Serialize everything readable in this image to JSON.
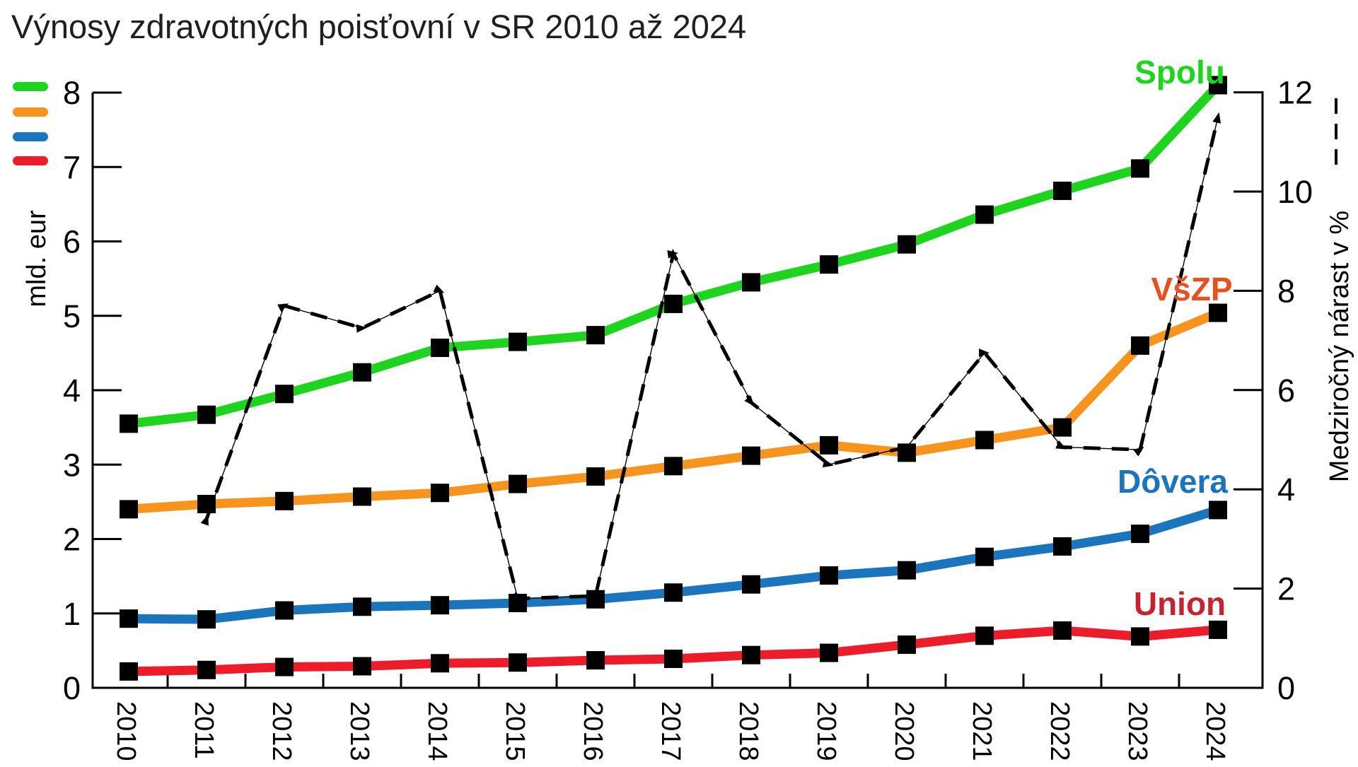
{
  "title": "Výnosy zdravotných poisťovní v SR 2010 až 2024",
  "legend_swatches": [
    {
      "name": "Spolu",
      "color": "#1fd41f"
    },
    {
      "name": "VšZP",
      "color": "#f7941e"
    },
    {
      "name": "Dôvera",
      "color": "#1b75bc"
    },
    {
      "name": "Union",
      "color": "#ed1c2b"
    }
  ],
  "chart_data": {
    "type": "line",
    "title": "Výnosy zdravotných poisťovní v SR 2010 až 2024",
    "x": [
      2010,
      2011,
      2012,
      2013,
      2014,
      2015,
      2016,
      2017,
      2018,
      2019,
      2020,
      2021,
      2022,
      2023,
      2024
    ],
    "series": [
      {
        "name": "Spolu",
        "axis": "left",
        "color": "#1fd41f",
        "label_color": "#1fd41f",
        "values": [
          3.55,
          3.67,
          3.95,
          4.24,
          4.57,
          4.65,
          4.74,
          5.16,
          5.45,
          5.69,
          5.96,
          6.36,
          6.68,
          6.98,
          8.1
        ]
      },
      {
        "name": "VšZP",
        "axis": "left",
        "color": "#f7941e",
        "label_color": "#e8501f",
        "values": [
          2.4,
          2.47,
          2.51,
          2.57,
          2.62,
          2.74,
          2.84,
          2.98,
          3.12,
          3.26,
          3.16,
          3.33,
          3.5,
          4.6,
          5.04
        ]
      },
      {
        "name": "Dôvera",
        "axis": "left",
        "color": "#1b75bc",
        "label_color": "#1b75bc",
        "values": [
          0.93,
          0.92,
          1.04,
          1.09,
          1.11,
          1.14,
          1.19,
          1.28,
          1.39,
          1.51,
          1.58,
          1.76,
          1.9,
          2.07,
          2.39
        ]
      },
      {
        "name": "Union",
        "axis": "left",
        "color": "#ed1c2b",
        "label_color": "#c4232f",
        "values": [
          0.22,
          0.24,
          0.28,
          0.29,
          0.33,
          0.34,
          0.37,
          0.39,
          0.44,
          0.47,
          0.58,
          0.7,
          0.77,
          0.69,
          0.78
        ]
      }
    ],
    "growth_series": {
      "name": "Medziročný nárast v %",
      "axis": "right",
      "style": "dashed",
      "color": "#000000",
      "x": [
        2011,
        2012,
        2013,
        2014,
        2015,
        2016,
        2017,
        2018,
        2019,
        2020,
        2021,
        2022,
        2023,
        2024
      ],
      "values": [
        3.4,
        7.7,
        7.25,
        8.0,
        1.8,
        1.85,
        8.75,
        5.75,
        4.5,
        4.85,
        6.75,
        4.85,
        4.8,
        11.5
      ]
    },
    "left_axis": {
      "label": "mld. eur",
      "ticks": [
        0,
        1,
        2,
        3,
        4,
        5,
        6,
        7,
        8
      ],
      "range": [
        0,
        8
      ]
    },
    "right_axis": {
      "label": "Medziročný nárast v %",
      "ticks": [
        0,
        2,
        4,
        6,
        8,
        10,
        12
      ],
      "range": [
        0,
        12
      ]
    },
    "x_axis": {
      "labels": [
        "2010",
        "2011",
        "2012",
        "2013",
        "2014",
        "2015",
        "2016",
        "2017",
        "2018",
        "2019",
        "2020",
        "2021",
        "2022",
        "2023",
        "2024"
      ]
    },
    "grid": false,
    "marker": "black-square"
  }
}
